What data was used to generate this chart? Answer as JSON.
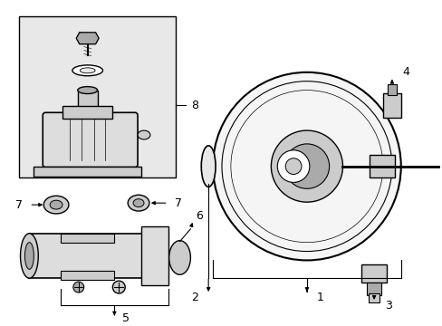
{
  "background_color": "#ffffff",
  "line_color": "#000000",
  "figsize": [
    4.89,
    3.6
  ],
  "dpi": 100,
  "box_fill": "#e8e8e8",
  "part_gray_light": "#dddddd",
  "part_gray_mid": "#cccccc",
  "part_gray_dark": "#aaaaaa"
}
